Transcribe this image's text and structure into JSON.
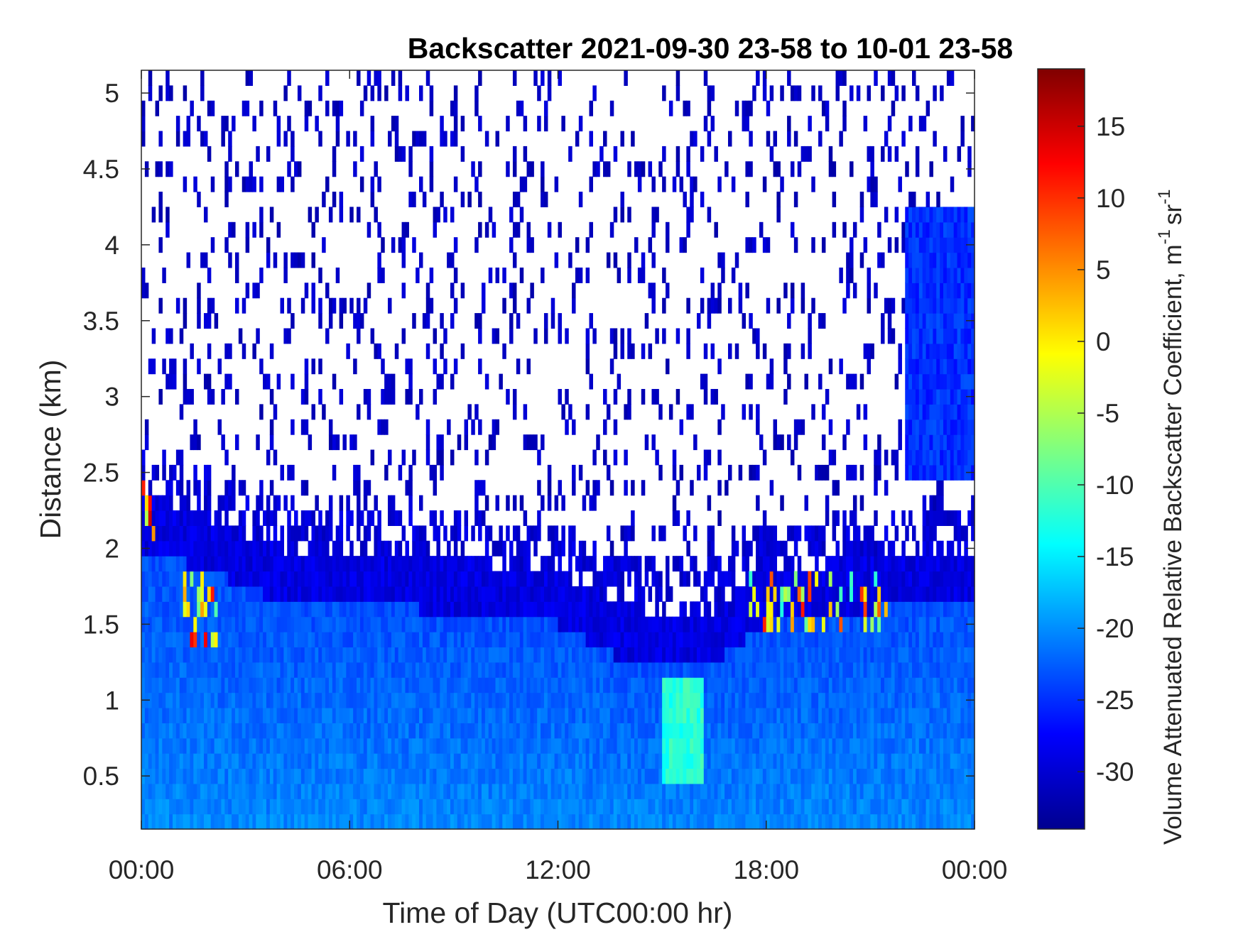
{
  "chart_data": {
    "type": "heatmap",
    "title": "Backscatter 2021-09-30 23-58 to 10-01 23-58",
    "xlabel": "Time of Day (UTC00:00 hr)",
    "ylabel": "Distance (km)",
    "colorbar_label": "Volume Attenuated Relative Backscatter Coefficient, m",
    "colorbar_label_exp1": "-1",
    "colorbar_label_unit2": "sr",
    "colorbar_label_exp2": "-1",
    "colormap": "jet",
    "xlim_hours": [
      0,
      24
    ],
    "ylim_km": [
      0.15,
      5.15
    ],
    "clim": [
      -34,
      19
    ],
    "x_ticks": [
      {
        "hour": 0,
        "label": "00:00"
      },
      {
        "hour": 6,
        "label": "06:00"
      },
      {
        "hour": 12,
        "label": "12:00"
      },
      {
        "hour": 18,
        "label": "18:00"
      },
      {
        "hour": 24,
        "label": "00:00"
      }
    ],
    "y_ticks": [
      {
        "value": 0.5,
        "label": "0.5"
      },
      {
        "value": 1,
        "label": "1"
      },
      {
        "value": 1.5,
        "label": "1.5"
      },
      {
        "value": 2,
        "label": "2"
      },
      {
        "value": 2.5,
        "label": "2.5"
      },
      {
        "value": 3,
        "label": "3"
      },
      {
        "value": 3.5,
        "label": "3.5"
      },
      {
        "value": 4,
        "label": "4"
      },
      {
        "value": 4.5,
        "label": "4.5"
      },
      {
        "value": 5,
        "label": "5"
      }
    ],
    "colorbar_ticks": [
      {
        "value": 15,
        "label": "15"
      },
      {
        "value": 10,
        "label": "10"
      },
      {
        "value": 5,
        "label": "5"
      },
      {
        "value": 0,
        "label": "0"
      },
      {
        "value": -5,
        "label": "-5"
      },
      {
        "value": -10,
        "label": "-10"
      },
      {
        "value": -15,
        "label": "-15"
      },
      {
        "value": -20,
        "label": "-20"
      },
      {
        "value": -25,
        "label": "-25"
      },
      {
        "value": -30,
        "label": "-30"
      }
    ],
    "cloud_top_km_profile": [
      {
        "hour": 0,
        "km": 2.35
      },
      {
        "hour": 2,
        "km": 2.2
      },
      {
        "hour": 4,
        "km": 2.0
      },
      {
        "hour": 8,
        "km": 1.95
      },
      {
        "hour": 12,
        "km": 1.85
      },
      {
        "hour": 14,
        "km": 1.6
      },
      {
        "hour": 16.5,
        "km": 1.6
      },
      {
        "hour": 18,
        "km": 1.85
      },
      {
        "hour": 23,
        "km": 2.0
      },
      {
        "hour": 24,
        "km": 2.0
      }
    ],
    "features": [
      {
        "name": "strong return near 2.1-2.4 km",
        "hours": [
          0,
          0.5
        ],
        "km": [
          2.1,
          2.45
        ],
        "value_dB": 15
      },
      {
        "name": "strong return near 1.4-1.8 km",
        "hours": [
          1.2,
          2.2
        ],
        "km": [
          1.35,
          1.85
        ],
        "value_dB": 15
      },
      {
        "name": "cloud layer returns",
        "hours": [
          17.5,
          21.5
        ],
        "km": [
          1.5,
          1.85
        ],
        "value_dB": 12
      },
      {
        "name": "boundary layer enhancement",
        "hours": [
          15,
          16.2
        ],
        "km": [
          0.5,
          1.1
        ],
        "value_dB": -12
      },
      {
        "name": "upper noise layer",
        "hours": [
          22,
          24
        ],
        "km": [
          2.5,
          4.2
        ],
        "value_dB": -25
      }
    ]
  }
}
